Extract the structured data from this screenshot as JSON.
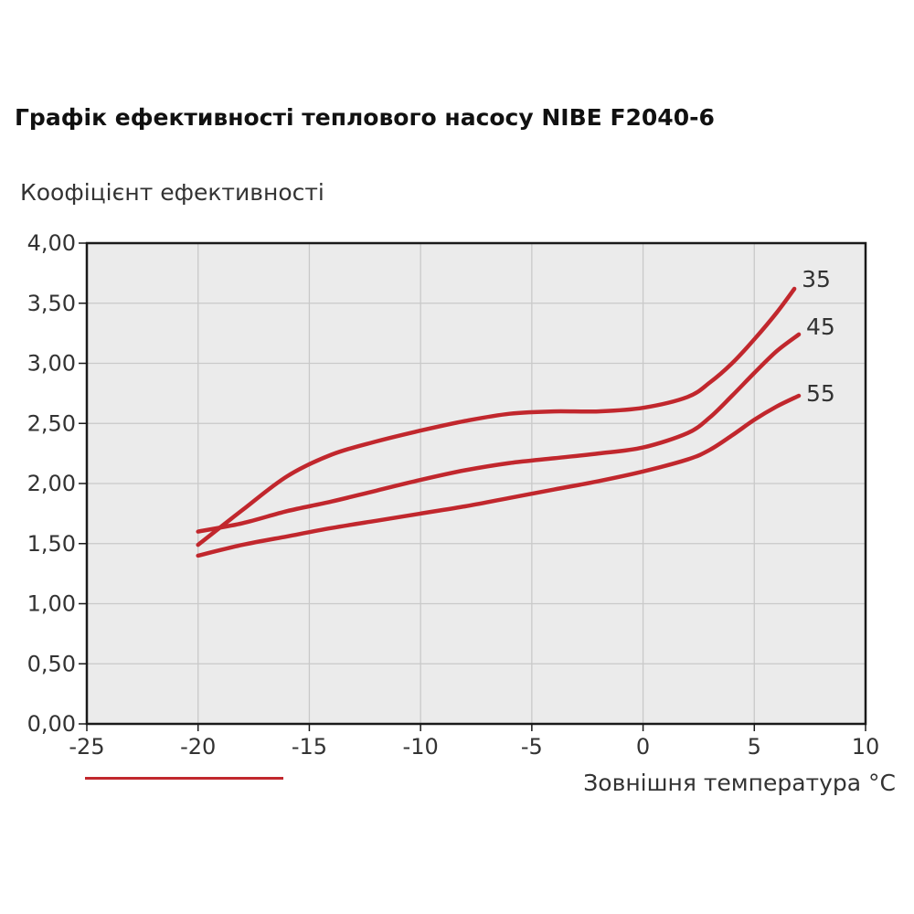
{
  "chart_data": {
    "type": "line",
    "title": "Графік ефективності теплового насосу NIBE F2040-6",
    "ylabel": "Коофіцієнт ефективності",
    "xlabel": "Зовнішня температура °С",
    "xlim": [
      -25,
      10
    ],
    "ylim": [
      0,
      4
    ],
    "x_ticks": [
      -25,
      -20,
      -15,
      -10,
      -5,
      0,
      5,
      10
    ],
    "x_tick_labels": [
      "-25",
      "-20",
      "-15",
      "-10",
      "-5",
      "0",
      "5",
      "10"
    ],
    "y_ticks": [
      0,
      0.5,
      1,
      1.5,
      2,
      2.5,
      3,
      3.5,
      4
    ],
    "y_tick_labels": [
      "0,00",
      "0,50",
      "1,00",
      "1,50",
      "2,00",
      "2,50",
      "3,00",
      "3,50",
      "4,00"
    ],
    "grid": true,
    "line_color": "#c1272d",
    "plot_background": "#ebebeb",
    "series": [
      {
        "name": "35",
        "x": [
          -20,
          -18,
          -16,
          -14,
          -12,
          -10,
          -8,
          -6,
          -4,
          -2,
          0,
          2,
          3,
          4,
          5,
          6,
          6.8
        ],
        "y": [
          1.49,
          1.78,
          2.06,
          2.24,
          2.35,
          2.44,
          2.52,
          2.58,
          2.6,
          2.6,
          2.63,
          2.72,
          2.84,
          3.0,
          3.2,
          3.42,
          3.62
        ]
      },
      {
        "name": "45",
        "x": [
          -20,
          -18,
          -16,
          -14,
          -12,
          -10,
          -8,
          -6,
          -4,
          -2,
          0,
          2,
          3,
          4,
          5,
          6,
          7
        ],
        "y": [
          1.6,
          1.67,
          1.77,
          1.85,
          1.94,
          2.03,
          2.11,
          2.17,
          2.21,
          2.25,
          2.3,
          2.42,
          2.55,
          2.73,
          2.92,
          3.1,
          3.24
        ]
      },
      {
        "name": "55",
        "x": [
          -20,
          -18,
          -16,
          -14,
          -12,
          -10,
          -8,
          -6,
          -4,
          -2,
          0,
          2,
          3,
          4,
          5,
          6,
          7
        ],
        "y": [
          1.4,
          1.49,
          1.56,
          1.63,
          1.69,
          1.75,
          1.81,
          1.88,
          1.95,
          2.02,
          2.1,
          2.2,
          2.28,
          2.4,
          2.53,
          2.64,
          2.73
        ]
      }
    ]
  }
}
